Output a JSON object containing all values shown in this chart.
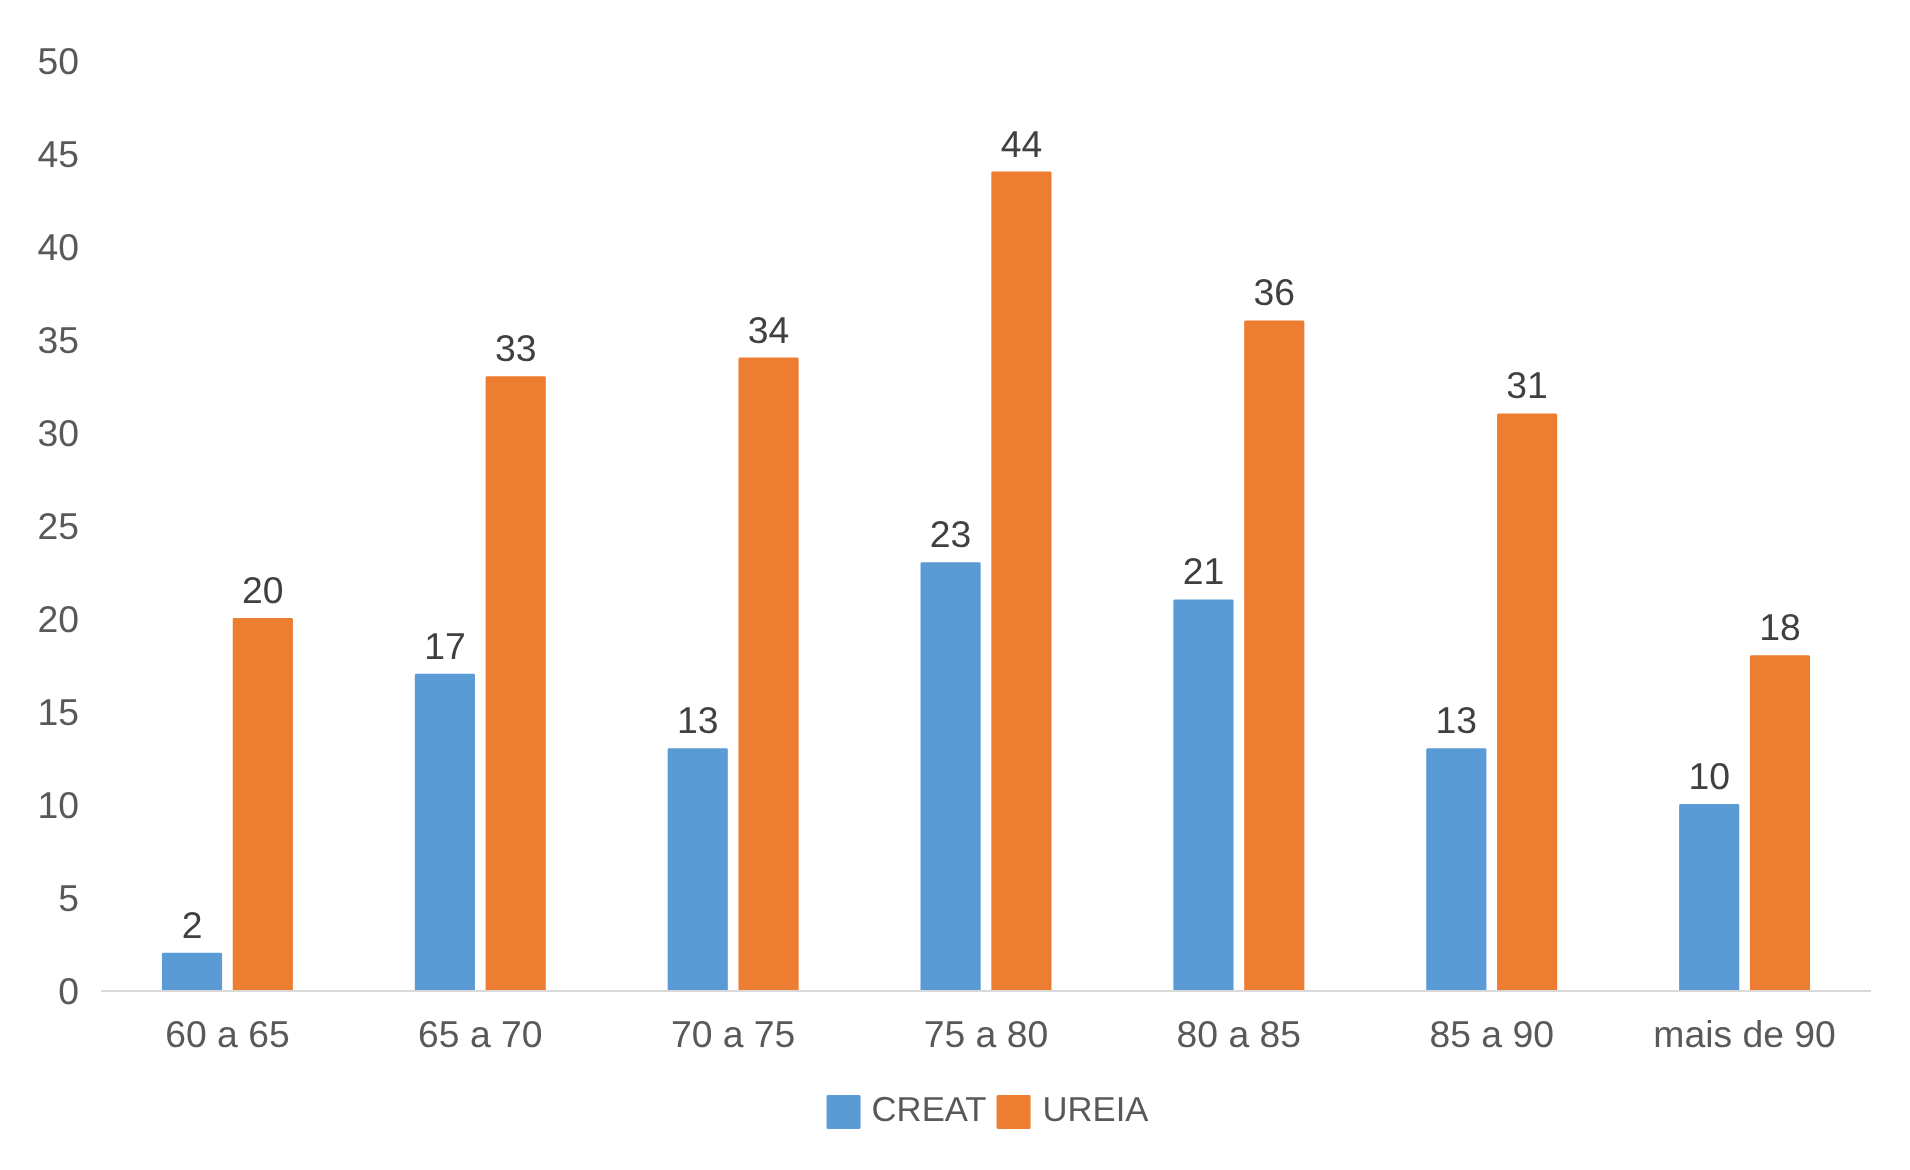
{
  "chart_data": {
    "type": "bar",
    "categories": [
      "60 a 65",
      "65 a 70",
      "70 a 75",
      "75 a 80",
      "80 a 85",
      "85 a 90",
      "mais de 90"
    ],
    "series": [
      {
        "name": "CREAT",
        "color": "#5b9bd5",
        "values": [
          2,
          17,
          13,
          23,
          21,
          13,
          10
        ]
      },
      {
        "name": "UREIA",
        "color": "#ed7d31",
        "values": [
          20,
          33,
          34,
          44,
          36,
          31,
          18
        ]
      }
    ],
    "ylim": [
      0,
      50
    ],
    "yticks": [
      0,
      5,
      10,
      15,
      20,
      25,
      30,
      35,
      40,
      45,
      50
    ],
    "grid": false,
    "legend": "bottom",
    "data_labels": true
  }
}
